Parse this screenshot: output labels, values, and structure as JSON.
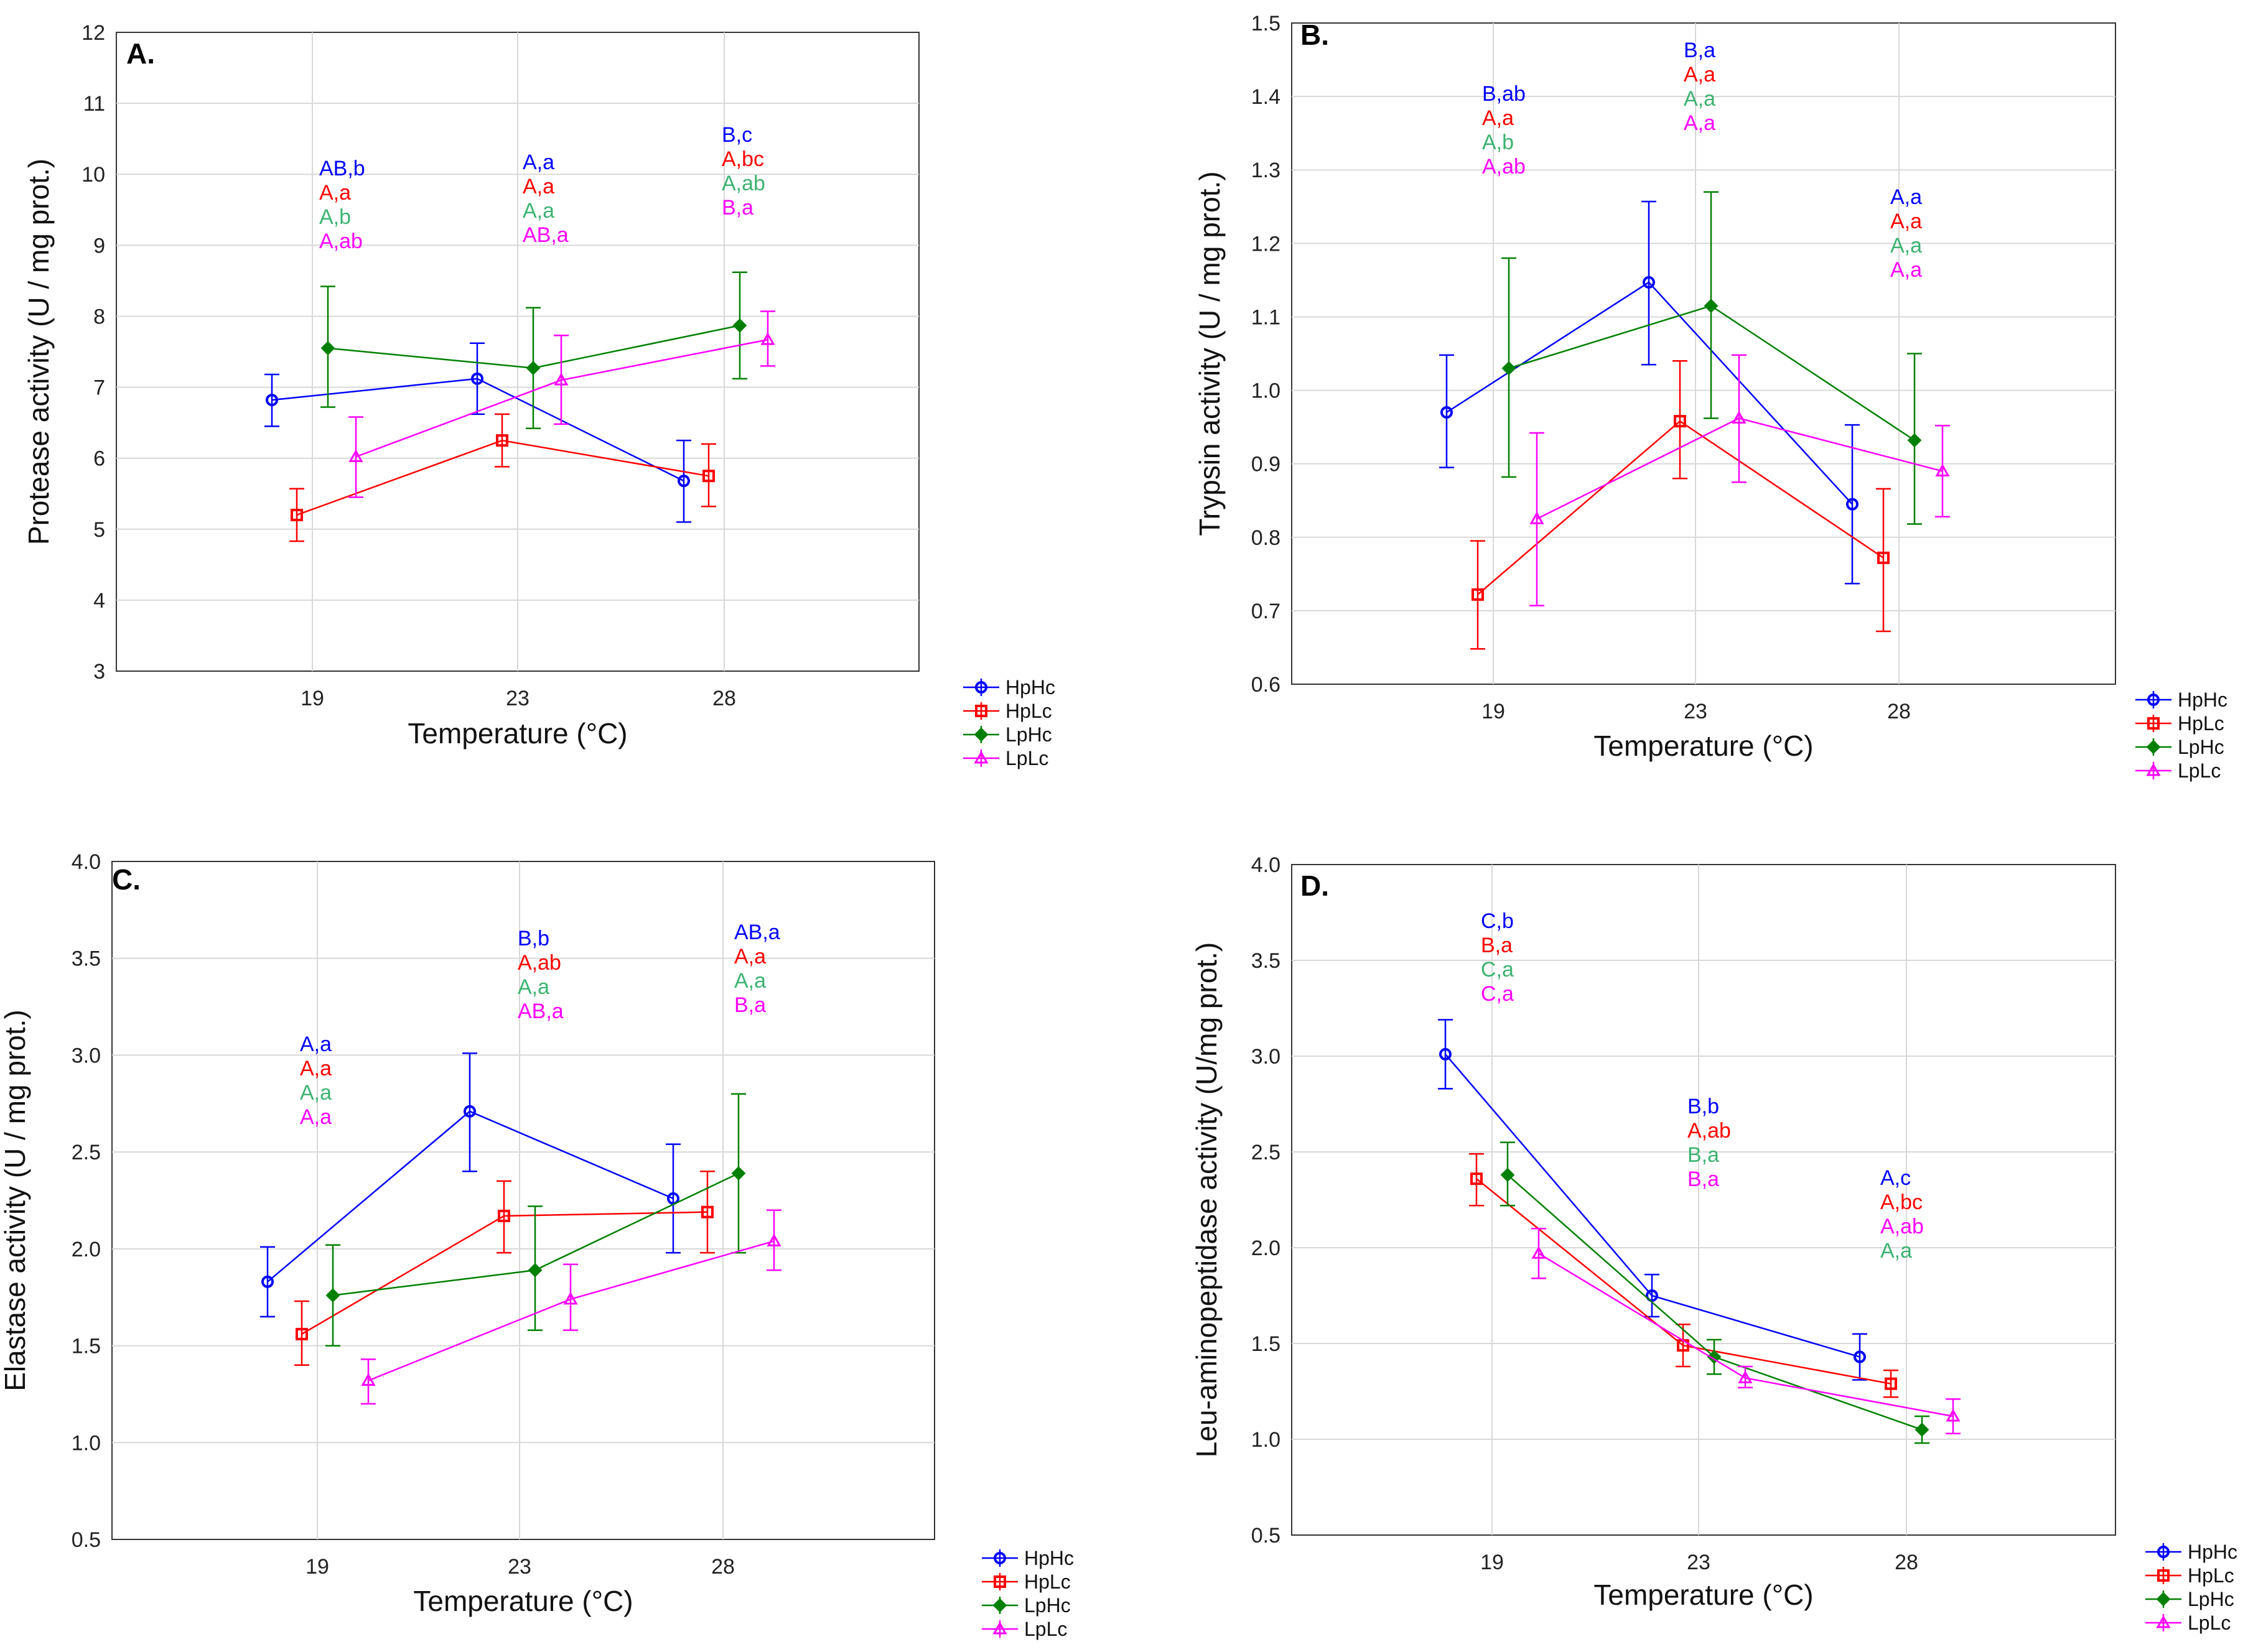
{
  "figure": {
    "series_colors": {
      "HpHc": "#0000ff",
      "HpLc": "#ff0000",
      "LpHc": "#008000",
      "LpLc": "#ff00ff"
    },
    "annotation_colors": [
      "#0000ff",
      "#ff0000",
      "#3cb371",
      "#ff00ff"
    ],
    "marker_shapes": {
      "HpHc": "circle",
      "HpLc": "square",
      "LpHc": "diamond",
      "LpLc": "triangle"
    }
  },
  "chart_data": [
    {
      "type": "line",
      "panel": "A.",
      "xlabel": "Temperature (°C)",
      "ylabel": "Protease activity (U / mg prot.)",
      "categories": [
        "19",
        "23",
        "28"
      ],
      "ylim": [
        3,
        12
      ],
      "yticks": [
        3,
        4,
        5,
        6,
        7,
        8,
        9,
        10,
        11,
        12
      ],
      "yfmt": 0,
      "legend": [
        "HpHc",
        "HpLc",
        "LpHc",
        "LpLc"
      ],
      "series": [
        {
          "name": "HpHc",
          "values": [
            6.82,
            7.12,
            5.68
          ],
          "err_low": [
            6.45,
            6.62,
            5.1
          ],
          "err_high": [
            7.18,
            7.62,
            6.25
          ]
        },
        {
          "name": "HpLc",
          "values": [
            5.2,
            6.25,
            5.75
          ],
          "err_low": [
            4.83,
            5.88,
            5.32
          ],
          "err_high": [
            5.57,
            6.62,
            6.2
          ]
        },
        {
          "name": "LpHc",
          "values": [
            7.55,
            7.27,
            7.87
          ],
          "err_low": [
            6.72,
            6.42,
            7.12
          ],
          "err_high": [
            8.42,
            8.12,
            8.62
          ]
        },
        {
          "name": "LpLc",
          "values": [
            6.02,
            7.1,
            7.67
          ],
          "err_low": [
            5.45,
            6.48,
            7.3
          ],
          "err_high": [
            6.58,
            7.73,
            8.07
          ]
        }
      ],
      "annotations": [
        {
          "x": "19",
          "labels": [
            "AB,b",
            "A,a",
            "A,b",
            "A,ab"
          ]
        },
        {
          "x": "23",
          "labels": [
            "A,a",
            "A,a",
            "A,a",
            "AB,a"
          ]
        },
        {
          "x": "28",
          "labels": [
            "B,c",
            "A,bc",
            "A,ab",
            "B,a"
          ]
        }
      ]
    },
    {
      "type": "line",
      "panel": "B.",
      "xlabel": "Temperature (°C)",
      "ylabel": "Trypsin activity (U / mg prot.)",
      "categories": [
        "19",
        "23",
        "28"
      ],
      "ylim": [
        0.6,
        1.5
      ],
      "yticks": [
        0.6,
        0.7,
        0.8,
        0.9,
        1.0,
        1.1,
        1.2,
        1.3,
        1.4,
        1.5
      ],
      "yfmt": 1,
      "legend": [
        "HpHc",
        "HpLc",
        "LpHc",
        "LpLc"
      ],
      "series": [
        {
          "name": "HpHc",
          "values": [
            0.97,
            1.147,
            0.845
          ],
          "err_low": [
            0.895,
            1.035,
            0.737
          ],
          "err_high": [
            1.048,
            1.257,
            0.953
          ]
        },
        {
          "name": "HpLc",
          "values": [
            0.722,
            0.958,
            0.772
          ],
          "err_low": [
            0.648,
            0.88,
            0.672
          ],
          "err_high": [
            0.795,
            1.04,
            0.866
          ]
        },
        {
          "name": "LpHc",
          "values": [
            1.03,
            1.115,
            0.932
          ],
          "err_low": [
            0.882,
            0.962,
            0.818
          ],
          "err_high": [
            1.18,
            1.27,
            1.05
          ]
        },
        {
          "name": "LpLc",
          "values": [
            0.825,
            0.962,
            0.89
          ],
          "err_low": [
            0.707,
            0.875,
            0.828
          ],
          "err_high": [
            0.942,
            1.048,
            0.952
          ]
        }
      ],
      "annotations": [
        {
          "x": "19",
          "labels": [
            "B,ab",
            "A,a",
            "A,b",
            "A,ab"
          ]
        },
        {
          "x": "23",
          "labels": [
            "B,a",
            "A,a",
            "A,a",
            "A,a"
          ]
        },
        {
          "x": "28",
          "labels": [
            "A,a",
            "A,a",
            "A,a",
            "A,a"
          ]
        }
      ]
    },
    {
      "type": "line",
      "panel": "C.",
      "xlabel": "Temperature (°C)",
      "ylabel": "Elastase activity (U / mg prot.)",
      "categories": [
        "19",
        "23",
        "28"
      ],
      "ylim": [
        0.5,
        4.0
      ],
      "yticks": [
        0.5,
        1.0,
        1.5,
        2.0,
        2.5,
        3.0,
        3.5,
        4.0
      ],
      "yfmt": 1,
      "legend": [
        "HpHc",
        "HpLc",
        "LpHc",
        "LpLc"
      ],
      "series": [
        {
          "name": "HpHc",
          "values": [
            1.83,
            2.71,
            2.26
          ],
          "err_low": [
            1.65,
            2.4,
            1.98
          ],
          "err_high": [
            2.01,
            3.01,
            2.54
          ]
        },
        {
          "name": "HpLc",
          "values": [
            1.56,
            2.17,
            2.19
          ],
          "err_low": [
            1.4,
            1.98,
            1.98
          ],
          "err_high": [
            1.73,
            2.35,
            2.4
          ]
        },
        {
          "name": "LpHc",
          "values": [
            1.76,
            1.89,
            2.39
          ],
          "err_low": [
            1.5,
            1.58,
            1.98
          ],
          "err_high": [
            2.02,
            2.22,
            2.8
          ]
        },
        {
          "name": "LpLc",
          "values": [
            1.32,
            1.74,
            2.04
          ],
          "err_low": [
            1.2,
            1.58,
            1.89
          ],
          "err_high": [
            1.43,
            1.92,
            2.2
          ]
        }
      ],
      "annotations": [
        {
          "x": "19",
          "labels": [
            "A,a",
            "A,a",
            "A,a",
            "A,a"
          ]
        },
        {
          "x": "23",
          "labels": [
            "B,b",
            "A,ab",
            "A,a",
            "AB,a"
          ]
        },
        {
          "x": "28",
          "labels": [
            "AB,a",
            "A,a",
            "A,a",
            "B,a"
          ]
        }
      ]
    },
    {
      "type": "line",
      "panel": "D.",
      "xlabel": "Temperature (°C)",
      "ylabel": "Leu-aminopeptidase activity (U/mg prot.)",
      "categories": [
        "19",
        "23",
        "28"
      ],
      "ylim": [
        0.5,
        4.0
      ],
      "yticks": [
        0.5,
        1.0,
        1.5,
        2.0,
        2.5,
        3.0,
        3.5,
        4.0
      ],
      "yfmt": 1,
      "legend": [
        "HpHc",
        "HpLc",
        "LpHc",
        "LpLc"
      ],
      "series": [
        {
          "name": "HpHc",
          "values": [
            3.01,
            1.75,
            1.43
          ],
          "err_low": [
            2.83,
            1.64,
            1.31
          ],
          "err_high": [
            3.19,
            1.86,
            1.55
          ]
        },
        {
          "name": "HpLc",
          "values": [
            2.36,
            1.49,
            1.29
          ],
          "err_low": [
            2.22,
            1.38,
            1.22
          ],
          "err_high": [
            2.49,
            1.6,
            1.36
          ]
        },
        {
          "name": "LpHc",
          "values": [
            2.38,
            1.43,
            1.05
          ],
          "err_low": [
            2.22,
            1.34,
            0.98
          ],
          "err_high": [
            2.55,
            1.52,
            1.12
          ]
        },
        {
          "name": "LpLc",
          "values": [
            1.97,
            1.32,
            1.12
          ],
          "err_low": [
            1.84,
            1.27,
            1.03
          ],
          "err_high": [
            2.1,
            1.38,
            1.21
          ]
        }
      ],
      "annotations": [
        {
          "x": "19",
          "labels": [
            "C,b",
            "B,a",
            "C,a",
            "C,a"
          ]
        },
        {
          "x": "23",
          "labels": [
            "B,b",
            "A,ab",
            "B,a",
            "B,a"
          ]
        },
        {
          "x": "28",
          "labels": [
            "A,c",
            "A,bc",
            "A,ab",
            "A,a"
          ],
          "colors": [
            "#0000ff",
            "#ff0000",
            "#ff00ff",
            "#3cb371"
          ]
        }
      ]
    }
  ]
}
